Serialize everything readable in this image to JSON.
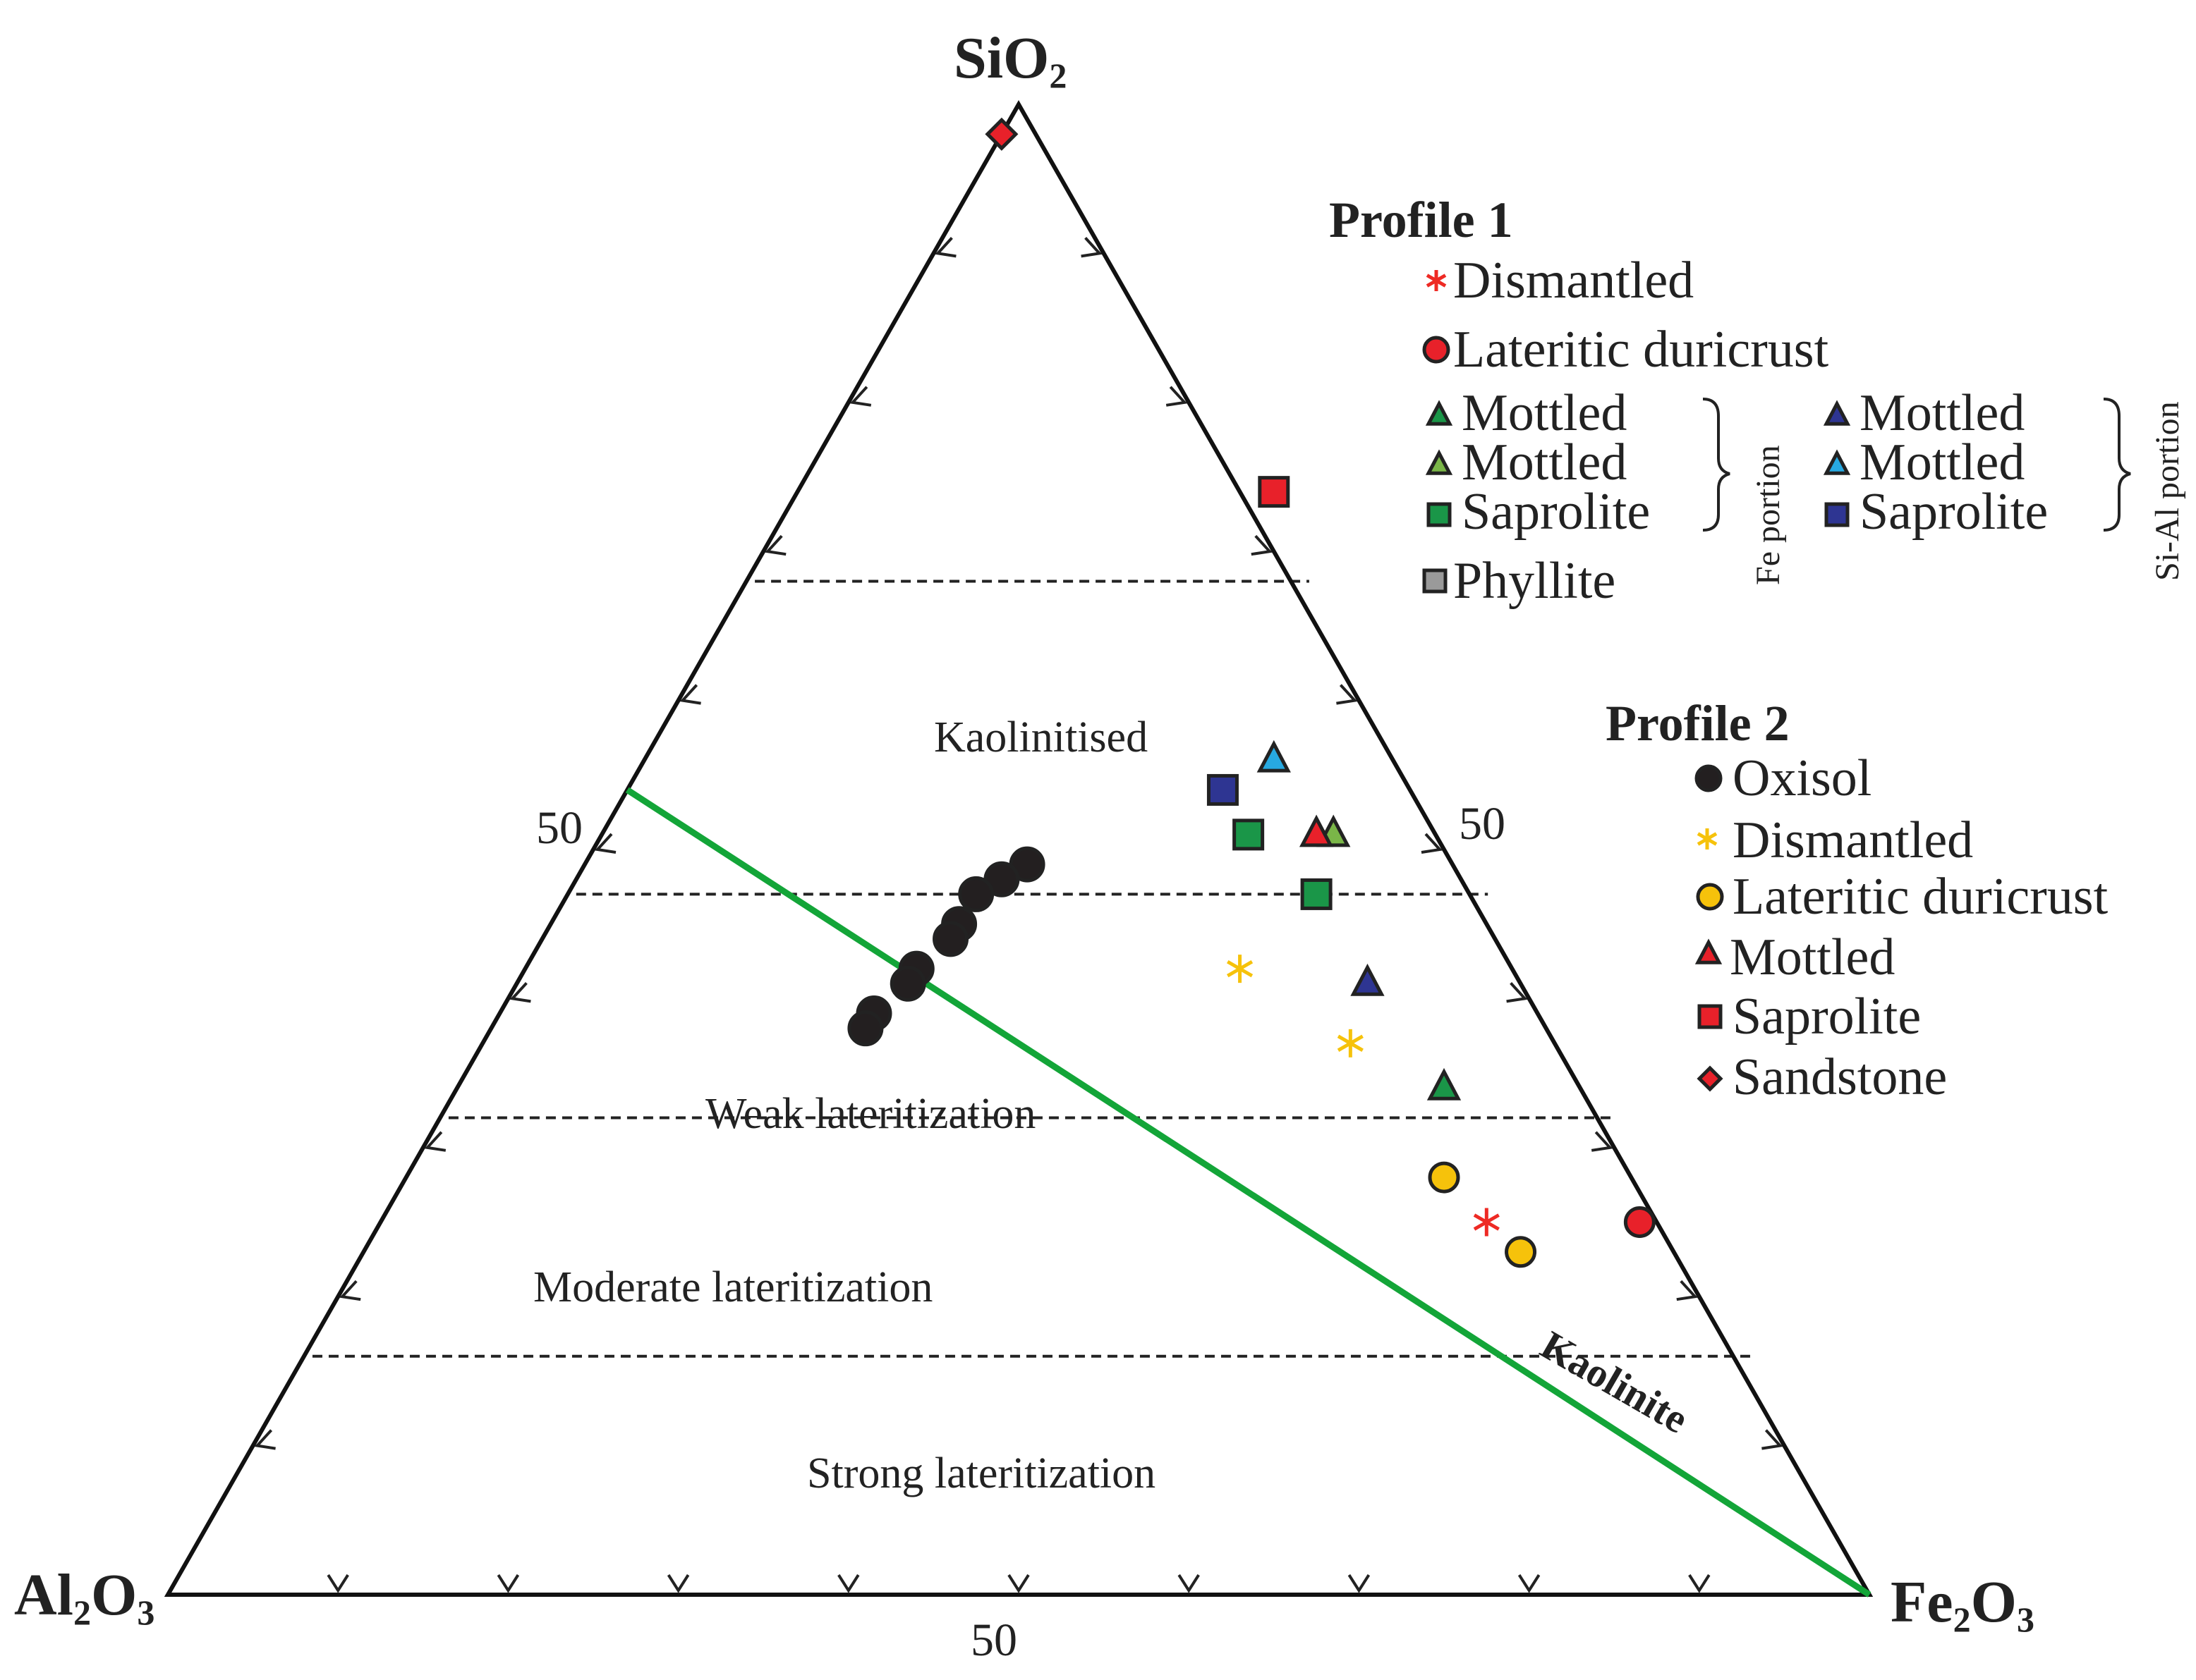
{
  "chart_data": {
    "type": "ternary-scatter",
    "apex_labels": {
      "top": {
        "base": "SiO",
        "sub": "2"
      },
      "left": {
        "base": "Al",
        "sub1": "2",
        "mid": "O",
        "sub2": "3"
      },
      "right": {
        "base": "Fe",
        "sub1": "2",
        "mid": "O",
        "sub2": "3"
      }
    },
    "tick_label": "50",
    "zones": [
      {
        "label": "Kaolinitised",
        "min_sio2": 68
      },
      {
        "label": "Weak lateritization",
        "min_sio2": 32
      },
      {
        "label": "Moderate lateritization",
        "min_sio2": 16
      },
      {
        "label": "Strong lateritization",
        "min_sio2": 0
      }
    ],
    "zone_boundaries_sio2": [
      68,
      47,
      32,
      16
    ],
    "kaolinite_line": {
      "label": "Kaolinite",
      "from": {
        "sio2": 54,
        "al2o3": 46,
        "fe2o3": 0
      },
      "to": {
        "sio2": 0,
        "al2o3": 0,
        "fe2o3": 100
      },
      "color": "#13a538"
    },
    "series": [
      {
        "name": "Dismantled",
        "profile": 1,
        "marker": "asterisk",
        "color": "#ee2a24",
        "points": [
          {
            "sio2": 25,
            "fe2o3": 65
          }
        ]
      },
      {
        "name": "Lateritic duricrust",
        "profile": 1,
        "marker": "circle",
        "color": "#e8212a",
        "points": [
          {
            "sio2": 25,
            "fe2o3": 74
          }
        ]
      },
      {
        "name": "Mottled",
        "profile": 1,
        "portion": "Fe portion",
        "marker": "triangle",
        "color": "#1a9648",
        "points": [
          {
            "sio2": 34,
            "fe2o3": 58
          }
        ]
      },
      {
        "name": "Mottled",
        "profile": 1,
        "portion": "Fe portion",
        "marker": "triangle",
        "color": "#7ab648",
        "points": [
          {
            "sio2": 51,
            "fe2o3": 43
          }
        ]
      },
      {
        "name": "Saprolite",
        "profile": 1,
        "portion": "Fe portion",
        "marker": "square",
        "color": "#1a9648",
        "points": [
          {
            "sio2": 47,
            "fe2o3": 44
          },
          {
            "sio2": 51,
            "fe2o3": 38
          }
        ]
      },
      {
        "name": "Mottled",
        "profile": 1,
        "portion": "Si-Al portion",
        "marker": "triangle",
        "color": "#2e3592",
        "points": [
          {
            "sio2": 41,
            "fe2o3": 50
          }
        ]
      },
      {
        "name": "Mottled",
        "profile": 1,
        "portion": "Si-Al portion",
        "marker": "triangle",
        "color": "#27a9e1",
        "points": [
          {
            "sio2": 56,
            "fe2o3": 37
          }
        ]
      },
      {
        "name": "Saprolite",
        "profile": 1,
        "portion": "Si-Al portion",
        "marker": "square",
        "color": "#2e3592",
        "points": [
          {
            "sio2": 54,
            "fe2o3": 35
          }
        ]
      },
      {
        "name": "Phyllite",
        "profile": 1,
        "marker": "square",
        "color": "#9a9a9a",
        "points": []
      },
      {
        "name": "Oxisol",
        "profile": 2,
        "marker": "circle",
        "color": "#231f20",
        "points": [
          {
            "sio2": 49,
            "fe2o3": 26
          },
          {
            "sio2": 48,
            "fe2o3": 25
          },
          {
            "sio2": 47,
            "fe2o3": 24
          },
          {
            "sio2": 45,
            "fe2o3": 24
          },
          {
            "sio2": 44,
            "fe2o3": 24
          },
          {
            "sio2": 42,
            "fe2o3": 23
          },
          {
            "sio2": 41,
            "fe2o3": 23
          },
          {
            "sio2": 39,
            "fe2o3": 22
          },
          {
            "sio2": 38,
            "fe2o3": 22
          }
        ]
      },
      {
        "name": "Dismantled",
        "profile": 2,
        "marker": "asterisk",
        "color": "#f6c20b",
        "points": [
          {
            "sio2": 42,
            "fe2o3": 42
          },
          {
            "sio2": 37,
            "fe2o3": 51
          }
        ]
      },
      {
        "name": "Lateritic duricrust",
        "profile": 2,
        "marker": "circle",
        "color": "#f6c20b",
        "points": [
          {
            "sio2": 28,
            "fe2o3": 61
          },
          {
            "sio2": 23,
            "fe2o3": 68
          }
        ]
      },
      {
        "name": "Mottled",
        "profile": 2,
        "marker": "triangle",
        "color": "#e8212a",
        "points": [
          {
            "sio2": 51,
            "fe2o3": 42
          }
        ]
      },
      {
        "name": "Saprolite",
        "profile": 2,
        "marker": "square",
        "color": "#e8212a",
        "points": [
          {
            "sio2": 74,
            "fe2o3": 28
          }
        ]
      },
      {
        "name": "Sandstone",
        "profile": 2,
        "marker": "diamond",
        "color": "#e8212a",
        "points": [
          {
            "sio2": 98,
            "fe2o3": 0
          }
        ]
      }
    ],
    "legend": {
      "profile1_title": "Profile 1",
      "profile2_title": "Profile 2",
      "fe_portion": "Fe portion",
      "sial_portion": "Si-Al portion"
    }
  }
}
